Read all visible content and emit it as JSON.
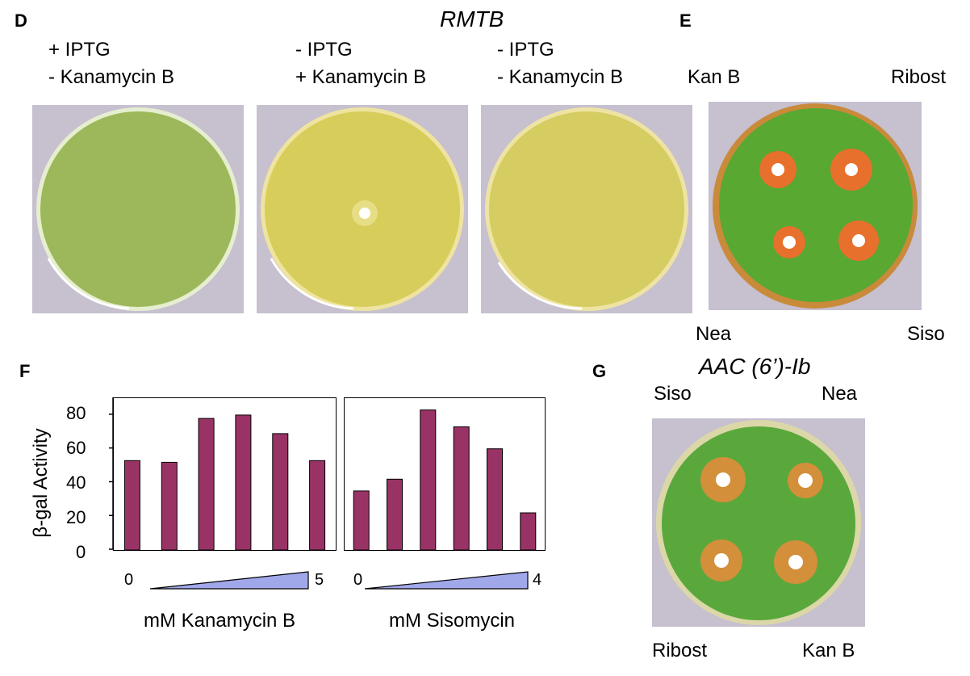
{
  "panel_labels": {
    "d": "D",
    "e": "E",
    "f": "F",
    "g": "G"
  },
  "panel_d": {
    "title": "RMTB",
    "plates": [
      {
        "line1": "+ IPTG",
        "line2": "- Kanamycin B",
        "color": "#9cb85a"
      },
      {
        "line1": "- IPTG",
        "line2": "+ Kanamycin B",
        "color": "#d6cd5a"
      },
      {
        "line1": "- IPTG",
        "line2": "- Kanamycin B",
        "color": "#d5cc62"
      }
    ]
  },
  "panel_e": {
    "labels": {
      "top_left": "Kan B",
      "top_right": "Ribost",
      "bottom_left": "Nea",
      "bottom_right": "Siso"
    },
    "plate_color": "#58a832",
    "halo_color": "#e7702c"
  },
  "panel_g": {
    "title": "AAC (6’)-Ib",
    "labels": {
      "top_left": "Siso",
      "top_right": "Nea",
      "bottom_left": "Ribost",
      "bottom_right": "Kan B"
    },
    "plate_color": "#5aa83c",
    "halo_color": "#e98b3a"
  },
  "chart_data": [
    {
      "type": "bar",
      "ylabel": "β-gal Activity",
      "xlabel": "mM Kanamycin B",
      "ylim": [
        0,
        90
      ],
      "yticks": [
        "0",
        "20",
        "40",
        "60",
        "80"
      ],
      "gradient_start": "0",
      "gradient_end": "5",
      "values": [
        53,
        52,
        78,
        80,
        69,
        53
      ],
      "bar_color": "#993366",
      "wedge_color": "#a1a8ea"
    },
    {
      "type": "bar",
      "xlabel": "mM Sisomycin",
      "ylim": [
        0,
        90
      ],
      "gradient_start": "0",
      "gradient_end": "4",
      "values": [
        35,
        42,
        83,
        73,
        60,
        22
      ],
      "bar_color": "#993366",
      "wedge_color": "#a1a8ea"
    }
  ]
}
